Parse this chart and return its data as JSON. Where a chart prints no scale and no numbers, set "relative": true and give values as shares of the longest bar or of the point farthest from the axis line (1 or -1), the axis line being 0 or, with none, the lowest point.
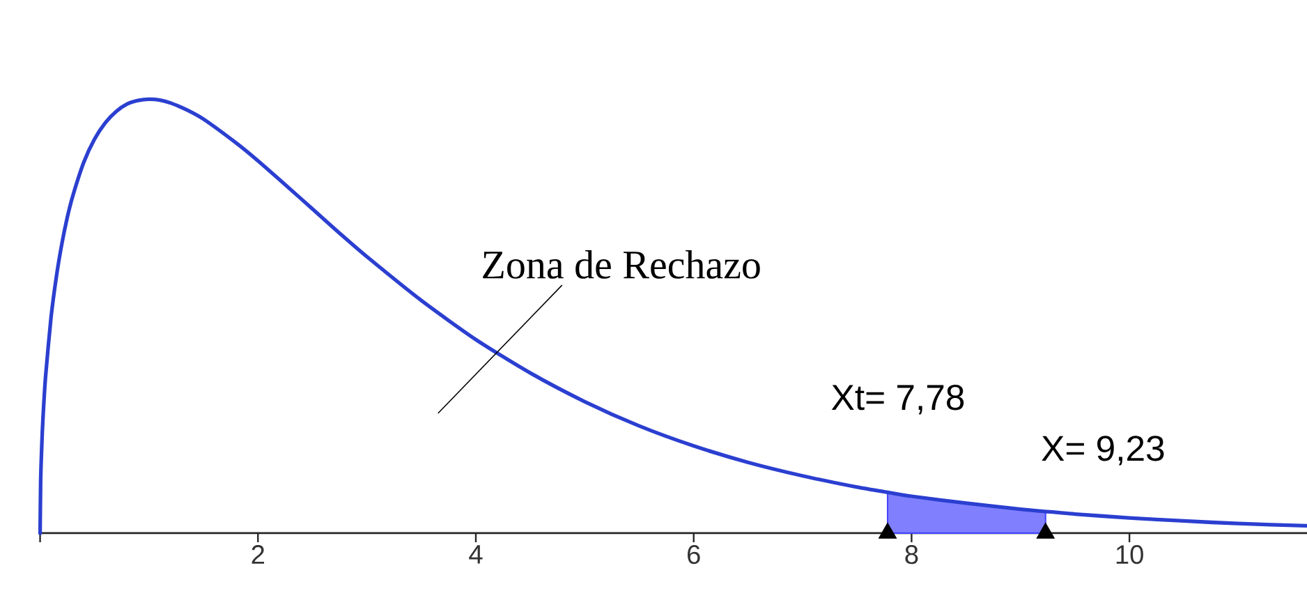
{
  "chart_data": {
    "type": "line",
    "relative": true,
    "xlim": [
      0,
      11.63
    ],
    "xticks": [
      {
        "value": 0,
        "label": null
      },
      2,
      4,
      6,
      8,
      10
    ],
    "series": [
      {
        "type": "area",
        "color": "#8080ff",
        "x": [
          7.78,
          8.0,
          8.5,
          9.0,
          9.23
        ],
        "values": [
          0.094,
          0.085,
          0.069,
          0.055,
          0.05
        ]
      },
      {
        "color": "#2b3fd0",
        "x": [
          0,
          0.005,
          0.01,
          0.02,
          0.03,
          0.05,
          0.1,
          0.15,
          0.2,
          0.25,
          0.3,
          0.4,
          0.5,
          0.6,
          0.7,
          0.8,
          0.9,
          1.0,
          1.1,
          1.2,
          1.35,
          1.5,
          1.8,
          2.0,
          2.25,
          2.5,
          2.75,
          3.0,
          3.5,
          4.0,
          4.5,
          5.0,
          5.5,
          6.0,
          6.5,
          7.0,
          7.5,
          7.78,
          8.0,
          8.5,
          9.0,
          9.23,
          9.5,
          10.0,
          10.5,
          11.0,
          11.63
        ],
        "values": [
          0,
          0.116,
          0.164,
          0.231,
          0.281,
          0.36,
          0.496,
          0.592,
          0.667,
          0.728,
          0.777,
          0.854,
          0.908,
          0.946,
          0.972,
          0.989,
          0.997,
          1,
          0.998,
          0.991,
          0.975,
          0.954,
          0.899,
          0.858,
          0.803,
          0.747,
          0.691,
          0.637,
          0.536,
          0.446,
          0.369,
          0.303,
          0.247,
          0.201,
          0.163,
          0.132,
          0.106,
          0.094,
          0.085,
          0.069,
          0.055,
          0.05,
          0.044,
          0.035,
          0.028,
          0.022,
          0.017
        ]
      },
      {
        "type": "scatter",
        "color": "#000000",
        "marker": "triangle",
        "x": [
          7.78,
          9.23
        ],
        "values": [
          0,
          0
        ]
      }
    ],
    "annotations": [
      "Zona de Rechazo",
      "Xt= 7,78",
      "X= 9,23"
    ]
  }
}
